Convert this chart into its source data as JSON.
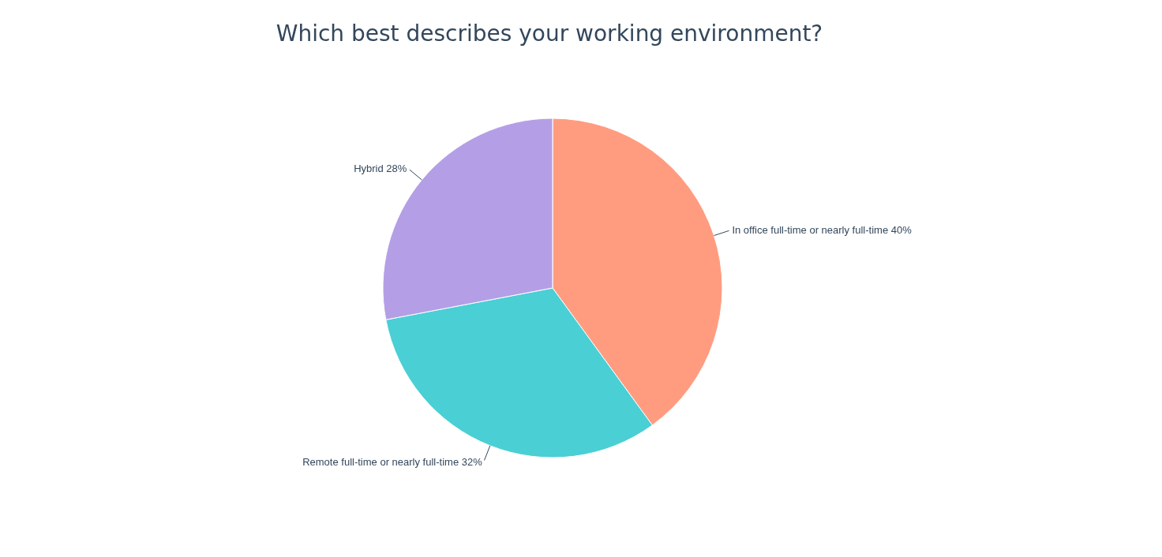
{
  "chart_data": {
    "type": "pie",
    "title": "Which best describes your working environment?",
    "categories": [
      "In office full-time or nearly full-time",
      "Remote full-time or nearly full-time",
      "Hybrid"
    ],
    "values": [
      40,
      32,
      28
    ],
    "value_labels": [
      "40%",
      "32%",
      "28%"
    ],
    "colors": [
      "#ff9c80",
      "#4acfd5",
      "#b49fe6"
    ],
    "legend": false
  }
}
